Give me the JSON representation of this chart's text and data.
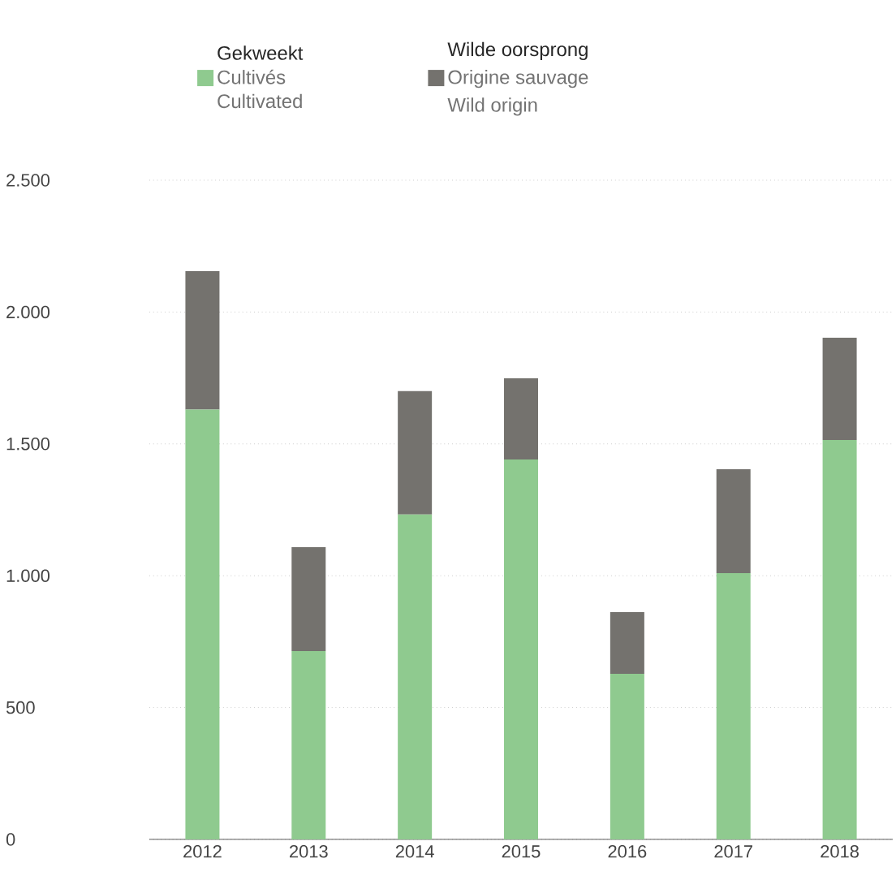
{
  "chart_data": {
    "type": "bar",
    "stacked": true,
    "categories": [
      "2012",
      "2013",
      "2014",
      "2015",
      "2016",
      "2017",
      "2018"
    ],
    "series": [
      {
        "name": "Cultivés",
        "color": "#8fca8f",
        "values": [
          1630,
          714,
          1232,
          1441,
          628,
          1010,
          1515
        ]
      },
      {
        "name": "Origine sauvage",
        "color": "#74726e",
        "values": [
          525,
          394,
          468,
          308,
          234,
          394,
          388
        ]
      }
    ],
    "annotations": [
      "Gekweekt",
      "Cultivated",
      "Wilde oorsprong",
      "Wild origin"
    ],
    "ylim": [
      0,
      2500
    ],
    "yticks": [
      0,
      500,
      {
        "value": 1000,
        "label": "1.000"
      },
      {
        "value": 1500,
        "label": "1.500"
      },
      {
        "value": 2000,
        "label": "2.000"
      },
      {
        "value": 2500,
        "label": "2.500"
      }
    ],
    "grid": "y",
    "legend": "top"
  }
}
